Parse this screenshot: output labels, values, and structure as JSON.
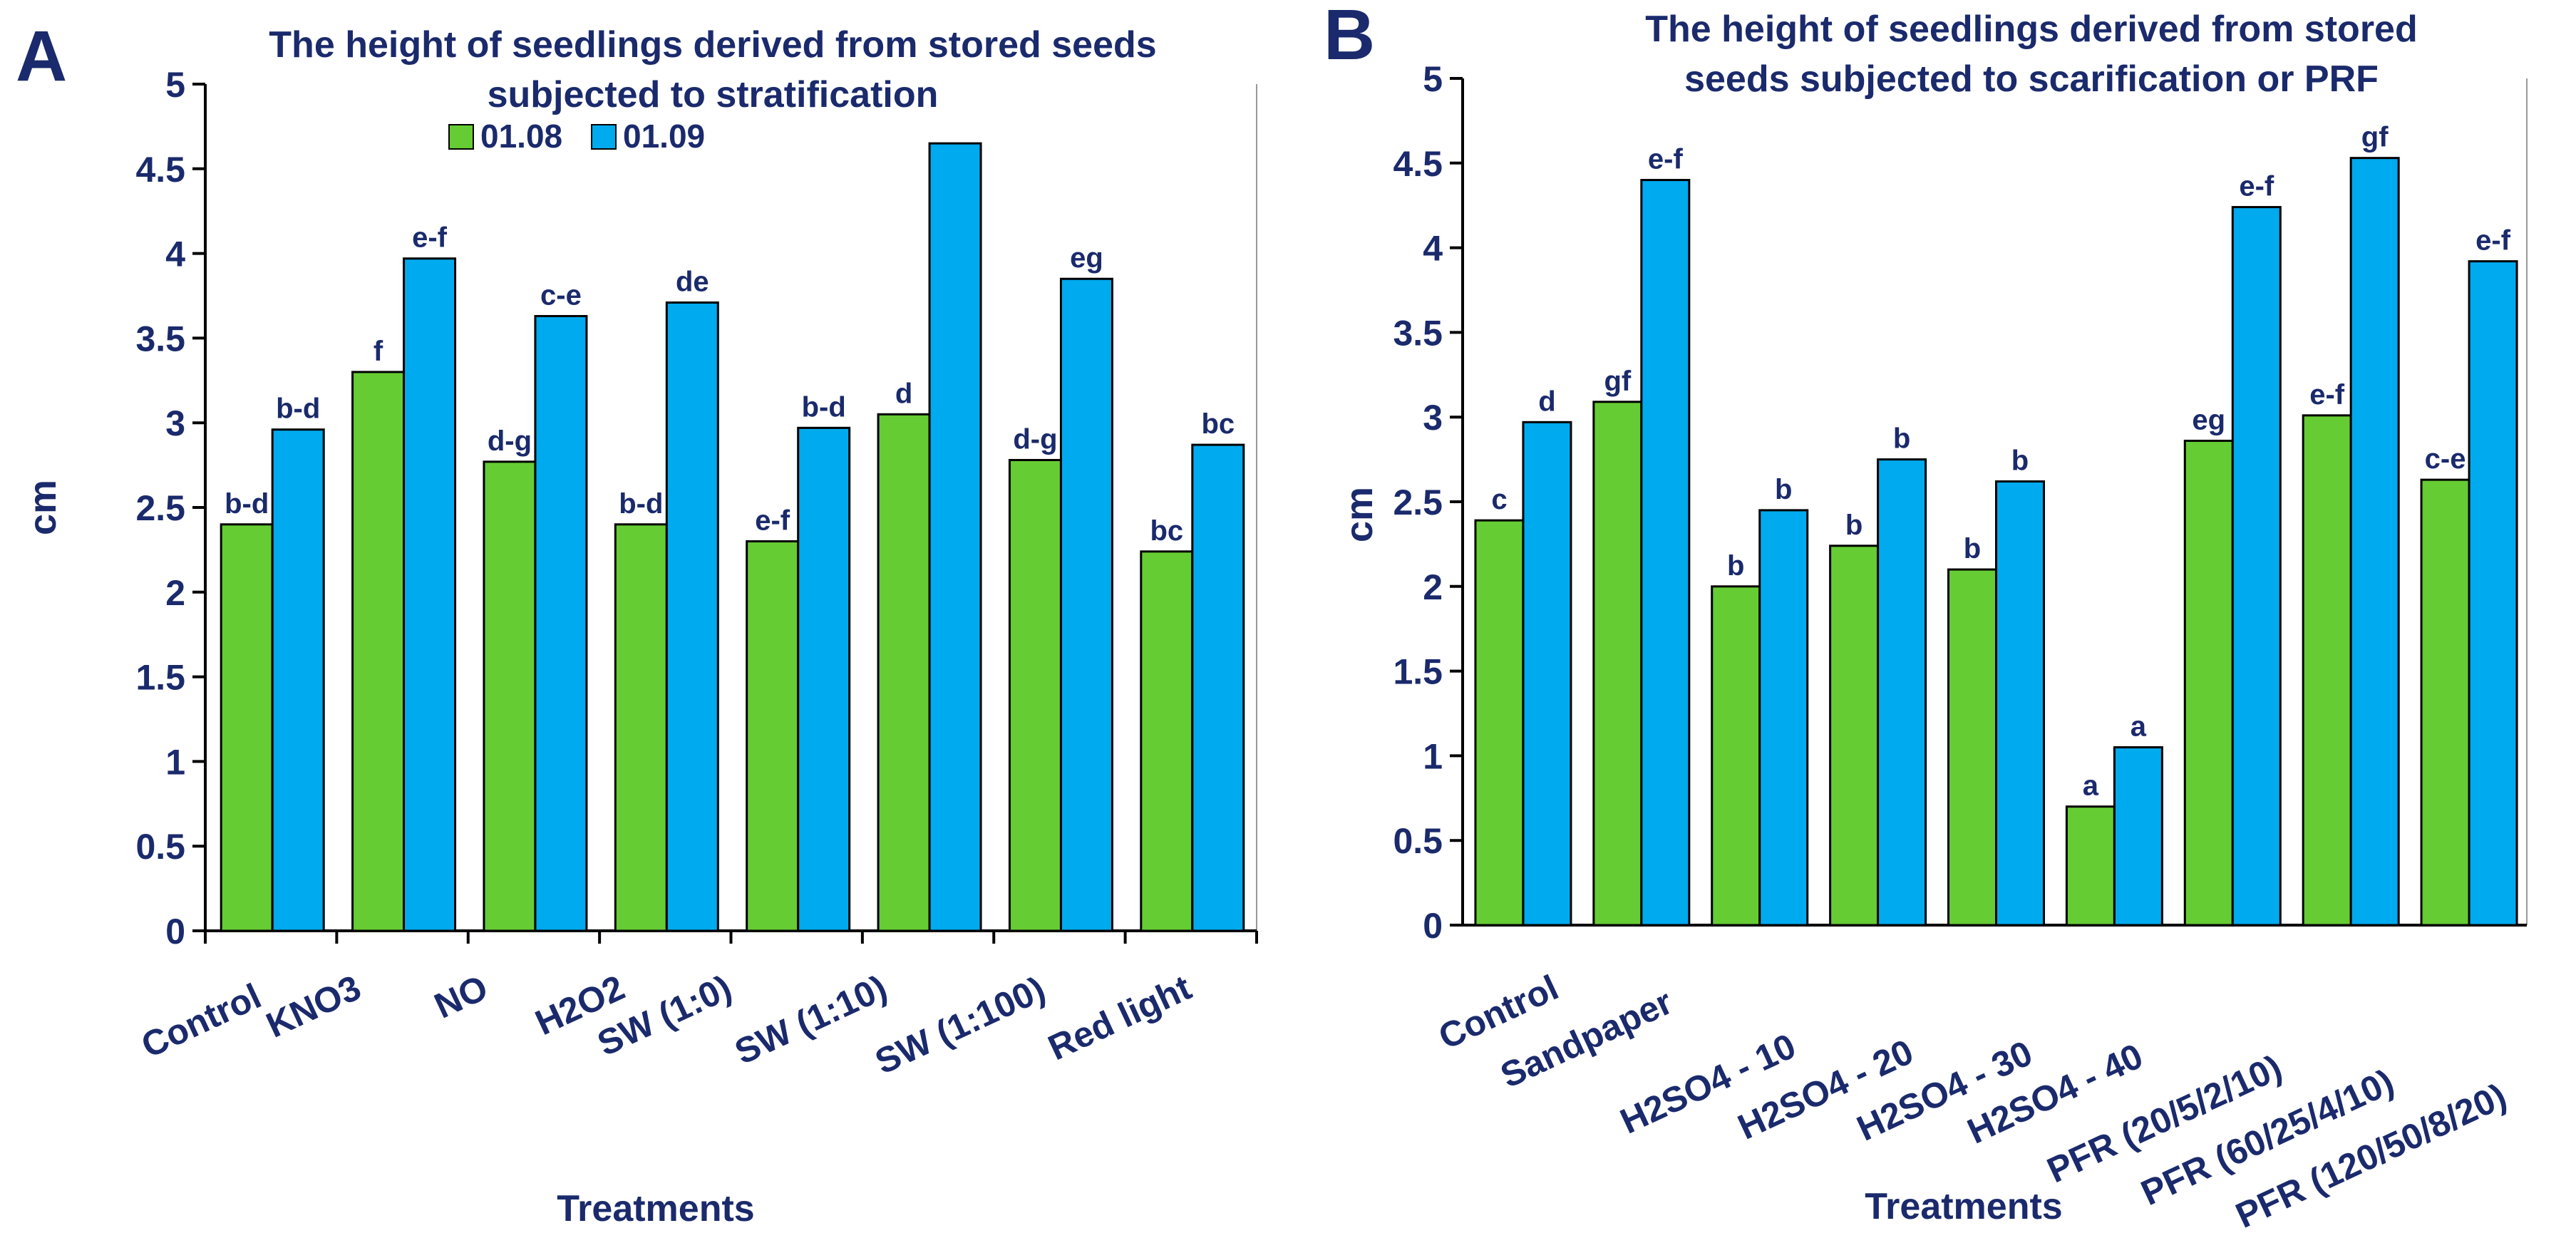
{
  "colors": {
    "series_1": "#66cc33",
    "series_2": "#00aaee",
    "text": "#1a2a6c",
    "outline": "#000000",
    "axis": "#000000",
    "frame": "#999999"
  },
  "chart_data": [
    {
      "panel_label": "A",
      "type": "bar",
      "title_lines": [
        "The height of seedlings derived from stored seeds",
        "subjected to stratification"
      ],
      "xlabel": "Treatments",
      "ylabel": "cm",
      "ylim": [
        0,
        5
      ],
      "yticks": [
        "0",
        "0.5",
        "1",
        "1.5",
        "2",
        "2.5",
        "3",
        "3.5",
        "4",
        "4.5",
        "5"
      ],
      "legend": {
        "placement": "top-left",
        "entries": [
          "01.08",
          "01.09"
        ]
      },
      "categories": [
        "Control",
        "KNO3",
        "NO",
        "H2O2",
        "SW (1:0)",
        "SW (1:10)",
        "SW (1:100)",
        "Red light"
      ],
      "series": [
        {
          "name": "01.08",
          "values": [
            2.4,
            3.3,
            2.77,
            2.4,
            2.3,
            3.05,
            2.78,
            2.24
          ],
          "letters": [
            "b-d",
            "f",
            "d-g",
            "b-d",
            "e-f",
            "d",
            "d-g",
            "bc"
          ]
        },
        {
          "name": "01.09",
          "values": [
            2.96,
            3.97,
            3.63,
            3.71,
            2.97,
            4.65,
            3.85,
            2.87
          ],
          "letters": [
            "b-d",
            "e-f",
            "c-e",
            "de",
            "b-d",
            "",
            "eg",
            "bc"
          ]
        }
      ]
    },
    {
      "panel_label": "B",
      "type": "bar",
      "title_lines": [
        "The height of seedlings derived from stored",
        "seeds subjected to scarification or PRF"
      ],
      "xlabel": "Treatments",
      "ylabel": "cm",
      "ylim": [
        0,
        5
      ],
      "yticks": [
        "0",
        "0.5",
        "1",
        "1.5",
        "2",
        "2.5",
        "3",
        "3.5",
        "4",
        "4.5",
        "5"
      ],
      "categories": [
        "Control",
        "Sandpaper",
        "H2SO4 - 10",
        "H2SO4 - 20",
        "H2SO4 - 30",
        "H2SO4 - 40",
        "PFR (20/5/2/10)",
        "PFR (60/25/4/10)",
        "PFR (120/50/8/20)"
      ],
      "series": [
        {
          "name": "01.08",
          "values": [
            2.39,
            3.09,
            2.0,
            2.24,
            2.1,
            0.7,
            2.86,
            3.01,
            2.63
          ],
          "letters": [
            "c",
            "gf",
            "b",
            "b",
            "b",
            "a",
            "eg",
            "e-f",
            "c-e"
          ]
        },
        {
          "name": "01.09",
          "values": [
            2.97,
            4.4,
            2.45,
            2.75,
            2.62,
            1.05,
            4.24,
            4.53,
            3.92
          ],
          "letters": [
            "d",
            "e-f",
            "b",
            "b",
            "b",
            "a",
            "e-f",
            "gf",
            "e-f"
          ]
        }
      ]
    }
  ]
}
